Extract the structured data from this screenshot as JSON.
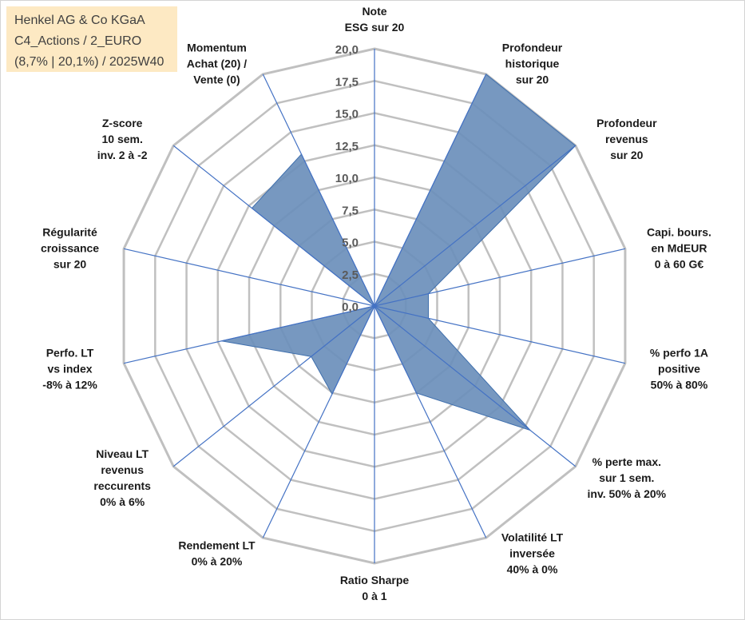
{
  "title_box": {
    "line1": "Henkel AG & Co KGaA",
    "line2": "C4_Actions / 2_EURO",
    "line3": "(8,7% | 20,1%) / 2025W40"
  },
  "colors": {
    "fill": "#6b8fbb",
    "stroke": "#3f6fad",
    "spoke": "#4472c4",
    "grid": "#c0c0c0",
    "title_bg": "#fde9c3"
  },
  "chart_data": {
    "type": "radar",
    "rmin": 0,
    "rmax": 20,
    "ticks": [
      "0,0",
      "2,5",
      "5,0",
      "7,5",
      "10,0",
      "12,5",
      "15,0",
      "17,5",
      "20,0"
    ],
    "axes": [
      {
        "lines": [
          "Note",
          "ESG sur 20"
        ],
        "value": 0
      },
      {
        "lines": [
          "Profondeur",
          "historique",
          "sur 20"
        ],
        "value": 20
      },
      {
        "lines": [
          "Profondeur",
          "revenus",
          "sur 20"
        ],
        "value": 20
      },
      {
        "lines": [
          "Capi. bours.",
          "en MdEUR",
          "0 à 60 G€"
        ],
        "value": 4.3
      },
      {
        "lines": [
          "% perfo 1A",
          "positive",
          "50% à 80%"
        ],
        "value": 4.3
      },
      {
        "lines": [
          "% perte max.",
          "sur 1 sem.",
          "inv. 50% à 20%"
        ],
        "value": 15.5
      },
      {
        "lines": [
          "Volatilité LT",
          "inversée",
          "40% à 0%"
        ],
        "value": 7.5
      },
      {
        "lines": [
          "Ratio Sharpe",
          "0 à 1"
        ],
        "value": 0
      },
      {
        "lines": [
          "Rendement LT",
          "0% à 20%"
        ],
        "value": 7.6
      },
      {
        "lines": [
          "Niveau LT",
          "revenus",
          "reccurents",
          "0% à 6%"
        ],
        "value": 6.3
      },
      {
        "lines": [
          "Perfo. LT",
          "vs index",
          "-8% à 12%"
        ],
        "value": 12.2
      },
      {
        "lines": [
          "Régularité",
          "croissance",
          "sur 20"
        ],
        "value": 0
      },
      {
        "lines": [
          "Z-score",
          "10 sem.",
          "inv. 2 à -2"
        ],
        "value": 12.2
      },
      {
        "lines": [
          "Momentum",
          "Achat (20) /",
          "Vente (0)"
        ],
        "value": 13.1
      }
    ]
  }
}
